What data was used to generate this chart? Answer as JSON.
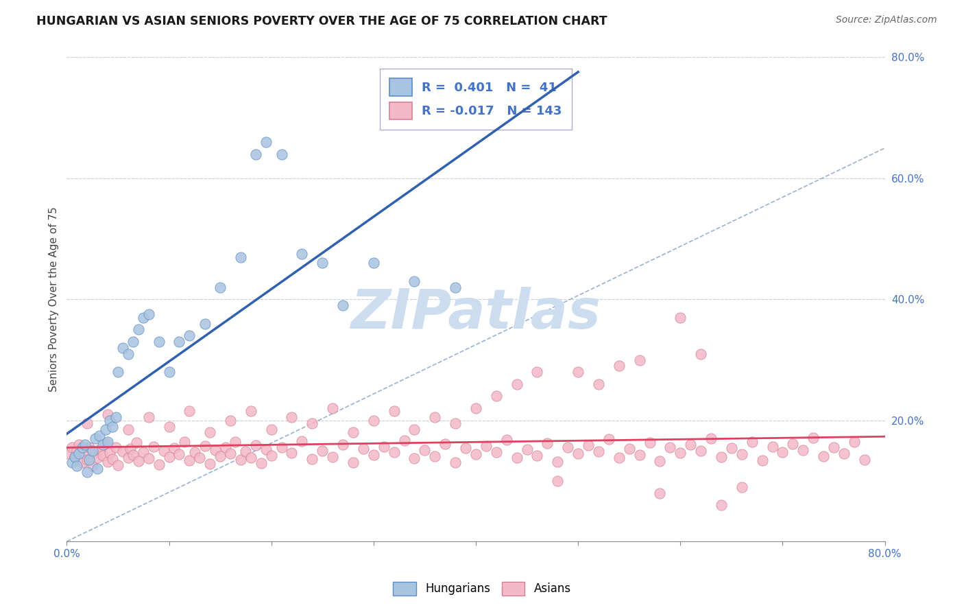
{
  "title": "HUNGARIAN VS ASIAN SENIORS POVERTY OVER THE AGE OF 75 CORRELATION CHART",
  "source_text": "Source: ZipAtlas.com",
  "ylabel": "Seniors Poverty Over the Age of 75",
  "xlim": [
    0.0,
    0.8
  ],
  "ylim": [
    0.0,
    0.8
  ],
  "xtick_labels_show": [
    "0.0%",
    "80.0%"
  ],
  "ytick_labels_show": [
    "20.0%",
    "40.0%",
    "60.0%",
    "80.0%"
  ],
  "ytick_vals": [
    0.2,
    0.4,
    0.6,
    0.8
  ],
  "R_hungarian": 0.401,
  "N_hungarian": 41,
  "R_asian": -0.017,
  "N_asian": 143,
  "color_hungarian": "#a8c4e0",
  "color_asian": "#f4b8c8",
  "edge_color_hungarian": "#5b8ec4",
  "edge_color_asian": "#d48090",
  "line_color_hungarian": "#3060b0",
  "line_color_asian": "#e04060",
  "line_color_dashed": "#7090c0",
  "background_color": "#ffffff",
  "watermark": "ZIPatlas",
  "watermark_color": "#ccddef",
  "hungarian_x": [
    0.005,
    0.008,
    0.01,
    0.012,
    0.015,
    0.018,
    0.02,
    0.022,
    0.025,
    0.028,
    0.03,
    0.032,
    0.035,
    0.038,
    0.04,
    0.042,
    0.045,
    0.048,
    0.05,
    0.055,
    0.06,
    0.065,
    0.07,
    0.075,
    0.08,
    0.09,
    0.1,
    0.11,
    0.12,
    0.135,
    0.15,
    0.17,
    0.185,
    0.195,
    0.21,
    0.23,
    0.25,
    0.27,
    0.3,
    0.34,
    0.38
  ],
  "hungarian_y": [
    0.13,
    0.14,
    0.125,
    0.145,
    0.155,
    0.16,
    0.115,
    0.135,
    0.15,
    0.17,
    0.12,
    0.175,
    0.16,
    0.185,
    0.165,
    0.2,
    0.19,
    0.205,
    0.28,
    0.32,
    0.31,
    0.33,
    0.35,
    0.37,
    0.375,
    0.33,
    0.28,
    0.33,
    0.34,
    0.36,
    0.42,
    0.47,
    0.64,
    0.66,
    0.64,
    0.475,
    0.46,
    0.39,
    0.46,
    0.43,
    0.42
  ],
  "asian_x": [
    0.002,
    0.005,
    0.008,
    0.01,
    0.012,
    0.015,
    0.018,
    0.02,
    0.022,
    0.025,
    0.028,
    0.03,
    0.032,
    0.035,
    0.038,
    0.04,
    0.042,
    0.045,
    0.048,
    0.05,
    0.055,
    0.06,
    0.062,
    0.065,
    0.068,
    0.07,
    0.075,
    0.08,
    0.085,
    0.09,
    0.095,
    0.1,
    0.105,
    0.11,
    0.115,
    0.12,
    0.125,
    0.13,
    0.135,
    0.14,
    0.145,
    0.15,
    0.155,
    0.16,
    0.165,
    0.17,
    0.175,
    0.18,
    0.185,
    0.19,
    0.195,
    0.2,
    0.21,
    0.22,
    0.23,
    0.24,
    0.25,
    0.26,
    0.27,
    0.28,
    0.29,
    0.3,
    0.31,
    0.32,
    0.33,
    0.34,
    0.35,
    0.36,
    0.37,
    0.38,
    0.39,
    0.4,
    0.41,
    0.42,
    0.43,
    0.44,
    0.45,
    0.46,
    0.47,
    0.48,
    0.49,
    0.5,
    0.51,
    0.52,
    0.53,
    0.54,
    0.55,
    0.56,
    0.57,
    0.58,
    0.59,
    0.6,
    0.61,
    0.62,
    0.63,
    0.64,
    0.65,
    0.66,
    0.67,
    0.68,
    0.69,
    0.7,
    0.71,
    0.72,
    0.73,
    0.74,
    0.75,
    0.76,
    0.77,
    0.78,
    0.02,
    0.04,
    0.06,
    0.08,
    0.1,
    0.12,
    0.14,
    0.16,
    0.18,
    0.2,
    0.22,
    0.24,
    0.26,
    0.28,
    0.3,
    0.32,
    0.34,
    0.36,
    0.38,
    0.4,
    0.42,
    0.44,
    0.46,
    0.48,
    0.5,
    0.52,
    0.54,
    0.56,
    0.58,
    0.6,
    0.62,
    0.64,
    0.66
  ],
  "asian_y": [
    0.145,
    0.155,
    0.14,
    0.15,
    0.16,
    0.13,
    0.145,
    0.135,
    0.155,
    0.125,
    0.148,
    0.138,
    0.152,
    0.142,
    0.162,
    0.132,
    0.146,
    0.136,
    0.156,
    0.126,
    0.149,
    0.139,
    0.153,
    0.143,
    0.163,
    0.133,
    0.147,
    0.137,
    0.157,
    0.127,
    0.15,
    0.14,
    0.154,
    0.144,
    0.164,
    0.134,
    0.148,
    0.138,
    0.158,
    0.128,
    0.151,
    0.141,
    0.155,
    0.145,
    0.165,
    0.135,
    0.149,
    0.139,
    0.159,
    0.129,
    0.152,
    0.142,
    0.156,
    0.146,
    0.166,
    0.136,
    0.15,
    0.14,
    0.16,
    0.13,
    0.153,
    0.143,
    0.157,
    0.147,
    0.167,
    0.137,
    0.151,
    0.141,
    0.161,
    0.131,
    0.154,
    0.144,
    0.158,
    0.148,
    0.168,
    0.138,
    0.152,
    0.142,
    0.162,
    0.132,
    0.155,
    0.145,
    0.159,
    0.149,
    0.169,
    0.139,
    0.153,
    0.143,
    0.163,
    0.133,
    0.156,
    0.146,
    0.16,
    0.15,
    0.17,
    0.14,
    0.154,
    0.144,
    0.164,
    0.134,
    0.157,
    0.147,
    0.161,
    0.151,
    0.171,
    0.141,
    0.155,
    0.145,
    0.165,
    0.135,
    0.195,
    0.21,
    0.185,
    0.205,
    0.19,
    0.215,
    0.18,
    0.2,
    0.215,
    0.185,
    0.205,
    0.195,
    0.22,
    0.18,
    0.2,
    0.215,
    0.185,
    0.205,
    0.195,
    0.22,
    0.24,
    0.26,
    0.28,
    0.1,
    0.28,
    0.26,
    0.29,
    0.3,
    0.08,
    0.37,
    0.31,
    0.06,
    0.09
  ]
}
